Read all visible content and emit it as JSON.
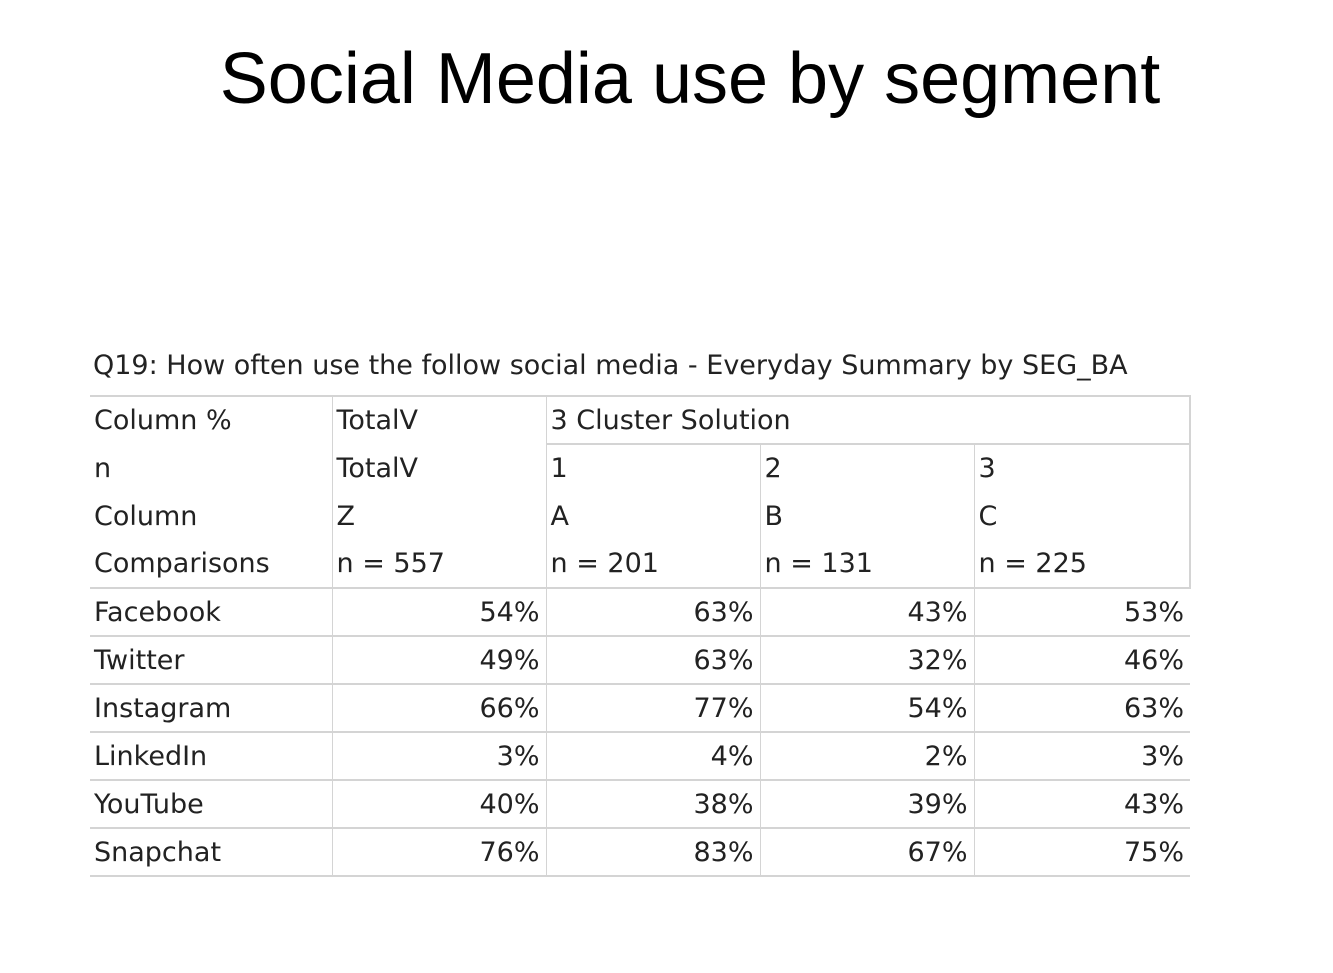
{
  "title": "Social Media use by segment",
  "table": {
    "caption": "Q19: How often use the follow social media - Everyday Summary by SEG_BA",
    "header": [
      [
        "Column %",
        "TotalV",
        "3 Cluster Solution"
      ],
      [
        "n",
        "TotalV",
        "1",
        "2",
        "3"
      ],
      [
        "Column",
        "Z",
        "A",
        "B",
        "C"
      ],
      [
        "Comparisons",
        "n = 557",
        "n = 201",
        "n = 131",
        "n = 225"
      ]
    ],
    "rows": [
      [
        "Facebook",
        "54%",
        "63%",
        "43%",
        "53%"
      ],
      [
        "Twitter",
        "49%",
        "63%",
        "32%",
        "46%"
      ],
      [
        "Instagram",
        "66%",
        "77%",
        "54%",
        "63%"
      ],
      [
        "LinkedIn",
        "3%",
        "4%",
        "2%",
        "3%"
      ],
      [
        "YouTube",
        "40%",
        "38%",
        "39%",
        "43%"
      ],
      [
        "Snapchat",
        "76%",
        "83%",
        "67%",
        "75%"
      ]
    ]
  }
}
